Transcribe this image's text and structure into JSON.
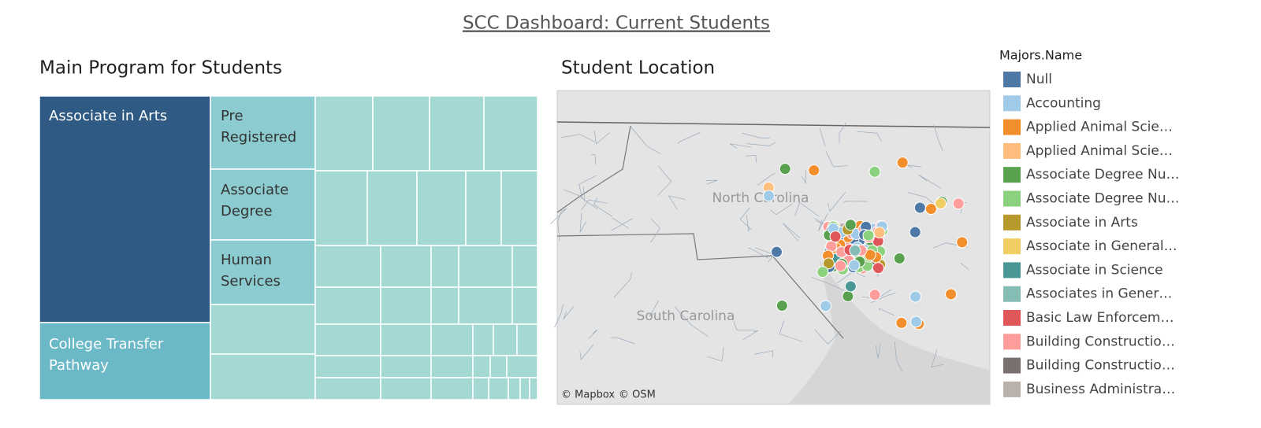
{
  "header": {
    "title": "SCC Dashboard: Current Students"
  },
  "treemap": {
    "title": "Main Program for Students",
    "labels": [
      "Associate in Arts",
      "College Transfer Pathway",
      "Pre Registered",
      "Associate Degree",
      "Human Services"
    ]
  },
  "map": {
    "title": "Student Location",
    "place_labels": [
      "North Carolina",
      "South Carolina"
    ],
    "attribution": [
      "© Mapbox",
      "© OSM"
    ]
  },
  "legend": {
    "title": "Majors.Name",
    "items": [
      {
        "name": "Null",
        "color": "#4e79a7"
      },
      {
        "name": "Accounting",
        "color": "#a0cbe8"
      },
      {
        "name": "Applied Animal Scie…",
        "color": "#f28e2b"
      },
      {
        "name": "Applied Animal Scie…",
        "color": "#ffbe7d"
      },
      {
        "name": "Associate Degree Nu…",
        "color": "#59a14f"
      },
      {
        "name": "Associate Degree Nu…",
        "color": "#8cd17d"
      },
      {
        "name": "Associate in Arts",
        "color": "#b6992d"
      },
      {
        "name": "Associate in General…",
        "color": "#f1ce63"
      },
      {
        "name": "Associate in Science",
        "color": "#499894"
      },
      {
        "name": "Associates in Gener…",
        "color": "#86bcb6"
      },
      {
        "name": "Basic Law Enforcem…",
        "color": "#e15759"
      },
      {
        "name": "Building Constructio…",
        "color": "#ff9d9a"
      },
      {
        "name": "Building Constructio…",
        "color": "#79706e"
      },
      {
        "name": "Business Administra…",
        "color": "#bab0ac"
      }
    ]
  }
}
